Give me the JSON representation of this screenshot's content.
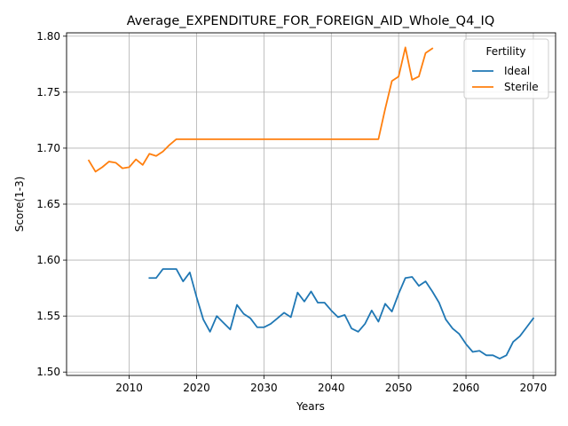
{
  "chart_data": {
    "type": "line",
    "title": "Average_EXPENDITURE_FOR_FOREIGN_AID_Whole_Q4_IQ",
    "xlabel": "Years",
    "ylabel": "Score(1-3)",
    "xlim": [
      2000.7,
      2073.3
    ],
    "ylim": [
      1.497,
      1.803
    ],
    "xticks": [
      2010,
      2020,
      2030,
      2040,
      2050,
      2060,
      2070
    ],
    "yticks": [
      1.5,
      1.55,
      1.6,
      1.65,
      1.7,
      1.75,
      1.8
    ],
    "xtick_labels": [
      "2010",
      "2020",
      "2030",
      "2040",
      "2050",
      "2060",
      "2070"
    ],
    "ytick_labels": [
      "1.50",
      "1.55",
      "1.60",
      "1.65",
      "1.70",
      "1.75",
      "1.80"
    ],
    "grid": true,
    "legend": {
      "title": "Fertility",
      "placement": "top-right"
    },
    "series": [
      {
        "name": "Ideal",
        "color": "#1f77b4",
        "x": [
          2013,
          2014,
          2015,
          2016,
          2017,
          2018,
          2019,
          2020,
          2021,
          2022,
          2023,
          2024,
          2025,
          2026,
          2027,
          2028,
          2029,
          2030,
          2031,
          2032,
          2033,
          2034,
          2035,
          2036,
          2037,
          2038,
          2039,
          2040,
          2041,
          2042,
          2043,
          2044,
          2045,
          2046,
          2047,
          2048,
          2049,
          2050,
          2051,
          2052,
          2053,
          2054,
          2055,
          2056,
          2057,
          2058,
          2059,
          2060,
          2061,
          2062,
          2063,
          2064,
          2065,
          2066,
          2067,
          2068,
          2069,
          2070
        ],
        "y": [
          1.584,
          1.584,
          1.592,
          1.592,
          1.592,
          1.581,
          1.589,
          1.567,
          1.547,
          1.536,
          1.55,
          1.544,
          1.538,
          1.56,
          1.552,
          1.548,
          1.54,
          1.54,
          1.543,
          1.548,
          1.553,
          1.549,
          1.571,
          1.563,
          1.572,
          1.562,
          1.562,
          1.555,
          1.549,
          1.551,
          1.539,
          1.536,
          1.543,
          1.555,
          1.545,
          1.561,
          1.554,
          1.57,
          1.584,
          1.585,
          1.577,
          1.581,
          1.572,
          1.562,
          1.547,
          1.539,
          1.534,
          1.525,
          1.518,
          1.519,
          1.515,
          1.515,
          1.512,
          1.515,
          1.527,
          1.532,
          1.54,
          1.548
        ]
      },
      {
        "name": "Sterile",
        "color": "#ff7f0e",
        "x": [
          2004,
          2005,
          2006,
          2007,
          2008,
          2009,
          2010,
          2011,
          2012,
          2013,
          2014,
          2015,
          2016,
          2017,
          2018,
          2019,
          2020,
          2021,
          2022,
          2023,
          2024,
          2025,
          2026,
          2027,
          2028,
          2029,
          2030,
          2031,
          2032,
          2033,
          2034,
          2035,
          2036,
          2037,
          2038,
          2039,
          2040,
          2041,
          2042,
          2043,
          2044,
          2045,
          2046,
          2047,
          2048,
          2049,
          2050,
          2051,
          2052,
          2053,
          2054,
          2055
        ],
        "y": [
          1.689,
          1.679,
          1.683,
          1.688,
          1.687,
          1.682,
          1.683,
          1.69,
          1.685,
          1.695,
          1.693,
          1.697,
          1.703,
          1.708,
          1.708,
          1.708,
          1.708,
          1.708,
          1.708,
          1.708,
          1.708,
          1.708,
          1.708,
          1.708,
          1.708,
          1.708,
          1.708,
          1.708,
          1.708,
          1.708,
          1.708,
          1.708,
          1.708,
          1.708,
          1.708,
          1.708,
          1.708,
          1.708,
          1.708,
          1.708,
          1.708,
          1.708,
          1.708,
          1.708,
          1.735,
          1.76,
          1.764,
          1.79,
          1.761,
          1.764,
          1.785,
          1.789
        ]
      }
    ]
  }
}
